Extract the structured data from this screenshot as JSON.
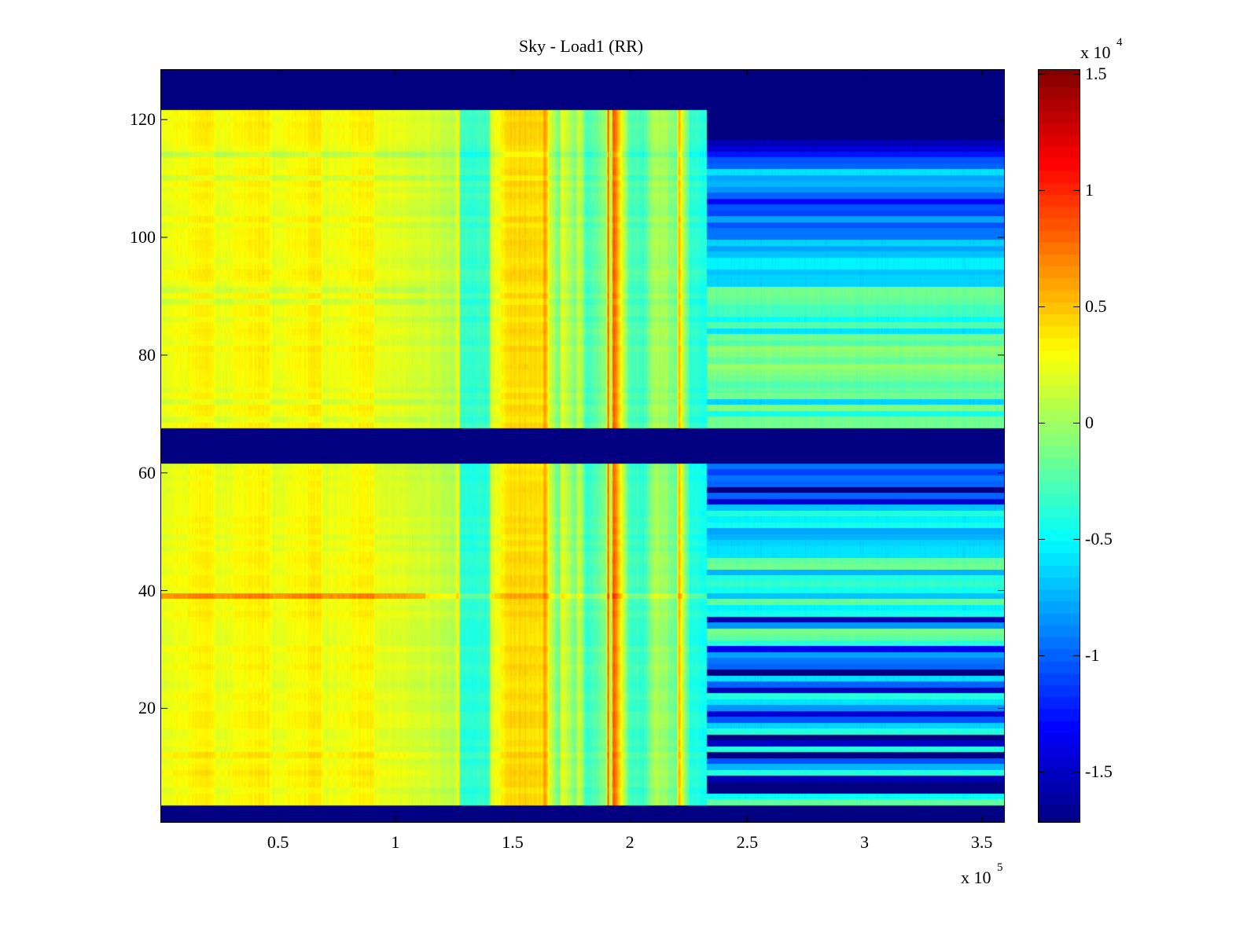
{
  "chart_data": {
    "type": "heatmap",
    "title": "Sky - Load1 (RR)",
    "xlabel": "",
    "ylabel": "",
    "xlim": [
      0,
      360000
    ],
    "ylim": [
      0.5,
      128.5
    ],
    "x_exponent_label": "x 10",
    "x_exponent": "5",
    "x_ticks": [
      50000,
      100000,
      150000,
      200000,
      250000,
      300000,
      350000
    ],
    "x_tick_labels": [
      "0.5",
      "1",
      "1.5",
      "2",
      "2.5",
      "3",
      "3.5"
    ],
    "y_ticks": [
      20,
      40,
      60,
      80,
      100,
      120
    ],
    "y_tick_labels": [
      "20",
      "40",
      "60",
      "80",
      "100",
      "120"
    ],
    "colormap": "jet",
    "clim": [
      -17200,
      15200
    ],
    "colorbar": {
      "exponent_label": "x 10",
      "exponent": "4",
      "ticks": [
        15000,
        10000,
        5000,
        0,
        -5000,
        -10000,
        -15000
      ],
      "tick_labels": [
        "1.5",
        "1",
        "0.5",
        "0",
        "-0.5",
        "-1",
        "-1.5"
      ],
      "levels": 64,
      "placement": "right"
    },
    "grid": false,
    "masked_rows": [
      {
        "from": 1,
        "to": 3,
        "value": -17200
      },
      {
        "from": 62,
        "to": 67,
        "value": -17200
      },
      {
        "from": 122,
        "to": 128,
        "value": -17200
      }
    ],
    "regions": [
      {
        "x_from": 0,
        "x_to": 233000,
        "description_value": 2000
      },
      {
        "x_from": 233000,
        "x_to": 360000,
        "description_value": -6000
      }
    ],
    "column_profile_x": [
      0,
      22000,
      24000,
      46000,
      48000,
      68000,
      70000,
      90000,
      92000,
      113000,
      125000,
      127000,
      128000,
      140000,
      141000,
      148000,
      163000,
      164000,
      166000,
      170000,
      171000,
      177000,
      178000,
      182000,
      190000,
      191000,
      192000,
      193000,
      200000,
      206000,
      211000,
      220000,
      221000,
      223000,
      226000,
      230000,
      233000
    ],
    "column_profile_value": [
      2200,
      3600,
      2200,
      3600,
      2200,
      3600,
      2200,
      3600,
      2200,
      1600,
      800,
      3000,
      -3800,
      -3800,
      1500,
      4200,
      4000,
      6500,
      1500,
      -2000,
      2500,
      -1500,
      1800,
      -3500,
      -1000,
      9500,
      -2000,
      9000,
      -3000,
      -3500,
      500,
      -1500,
      5500,
      800,
      -4000,
      -4200,
      -4800
    ],
    "row_offsets_left": [
      {
        "row": 5,
        "value": 2200
      },
      {
        "row": 9,
        "value": 2600
      },
      {
        "row": 12,
        "value": 2800
      },
      {
        "row": 20,
        "value": 2400
      },
      {
        "row": 24,
        "value": 1900
      },
      {
        "row": 26,
        "value": 1700
      },
      {
        "row": 39,
        "value": 6500
      },
      {
        "row": 57,
        "value": 1500
      },
      {
        "row": 60,
        "value": 2400
      },
      {
        "row": 61,
        "value": 2000
      },
      {
        "row": 69,
        "value": 1500
      },
      {
        "row": 72,
        "value": 1200
      },
      {
        "row": 77,
        "value": 2200
      },
      {
        "row": 79,
        "value": 2600
      },
      {
        "row": 89,
        "value": 1200
      },
      {
        "row": 91,
        "value": 900
      },
      {
        "row": 110,
        "value": 1400
      },
      {
        "row": 114,
        "value": 900
      }
    ],
    "right_region_rows": [
      {
        "row": 4,
        "value": -2000
      },
      {
        "row": 5,
        "value": -5000
      },
      {
        "row": 6,
        "value": -17200
      },
      {
        "row": 7,
        "value": -17200
      },
      {
        "row": 8,
        "value": -15500
      },
      {
        "row": 9,
        "value": -4000
      },
      {
        "row": 10,
        "value": -7500
      },
      {
        "row": 11,
        "value": -10500
      },
      {
        "row": 12,
        "value": -17200
      },
      {
        "row": 13,
        "value": -4000
      },
      {
        "row": 14,
        "value": -15000
      },
      {
        "row": 15,
        "value": -17200
      },
      {
        "row": 16,
        "value": -4000
      },
      {
        "row": 17,
        "value": -6500
      },
      {
        "row": 18,
        "value": -10500
      },
      {
        "row": 19,
        "value": -14500
      },
      {
        "row": 20,
        "value": -8500
      },
      {
        "row": 21,
        "value": -6000
      },
      {
        "row": 22,
        "value": -4000
      },
      {
        "row": 23,
        "value": -15500
      },
      {
        "row": 24,
        "value": -10000
      },
      {
        "row": 25,
        "value": -6000
      },
      {
        "row": 26,
        "value": -17200
      },
      {
        "row": 27,
        "value": -10000
      },
      {
        "row": 28,
        "value": -9500
      },
      {
        "row": 29,
        "value": -8000
      },
      {
        "row": 30,
        "value": -13500
      },
      {
        "row": 31,
        "value": -4000
      },
      {
        "row": 32,
        "value": -2000
      },
      {
        "row": 33,
        "value": -1200
      },
      {
        "row": 34,
        "value": -8500
      },
      {
        "row": 35,
        "value": -15500
      },
      {
        "row": 36,
        "value": -4500
      },
      {
        "row": 37,
        "value": -5500
      },
      {
        "row": 38,
        "value": -2000
      },
      {
        "row": 39,
        "value": -7000
      },
      {
        "row": 40,
        "value": -4500
      },
      {
        "row": 41,
        "value": -3500
      },
      {
        "row": 42,
        "value": -4000
      },
      {
        "row": 43,
        "value": -7500
      },
      {
        "row": 44,
        "value": -1500
      },
      {
        "row": 45,
        "value": -2000
      },
      {
        "row": 46,
        "value": -6000
      },
      {
        "row": 47,
        "value": -6000
      },
      {
        "row": 48,
        "value": -6500
      },
      {
        "row": 49,
        "value": -7500
      },
      {
        "row": 50,
        "value": -8000
      },
      {
        "row": 51,
        "value": -4500
      },
      {
        "row": 52,
        "value": -5500
      },
      {
        "row": 53,
        "value": -4000
      },
      {
        "row": 54,
        "value": -7000
      },
      {
        "row": 55,
        "value": -14500
      },
      {
        "row": 56,
        "value": -10000
      },
      {
        "row": 57,
        "value": -17200
      },
      {
        "row": 58,
        "value": -10000
      },
      {
        "row": 59,
        "value": -9500
      },
      {
        "row": 60,
        "value": -11000
      },
      {
        "row": 61,
        "value": -9500
      },
      {
        "row": 68,
        "value": -1500
      },
      {
        "row": 69,
        "value": -1500
      },
      {
        "row": 70,
        "value": -4500
      },
      {
        "row": 71,
        "value": -1000
      },
      {
        "row": 72,
        "value": -6500
      },
      {
        "row": 73,
        "value": -1500
      },
      {
        "row": 74,
        "value": -2000
      },
      {
        "row": 75,
        "value": -2500
      },
      {
        "row": 76,
        "value": -1500
      },
      {
        "row": 77,
        "value": -1000
      },
      {
        "row": 78,
        "value": -300
      },
      {
        "row": 79,
        "value": -2000
      },
      {
        "row": 80,
        "value": -1000
      },
      {
        "row": 81,
        "value": -500
      },
      {
        "row": 82,
        "value": -2500
      },
      {
        "row": 83,
        "value": -1500
      },
      {
        "row": 84,
        "value": -6000
      },
      {
        "row": 85,
        "value": -2500
      },
      {
        "row": 86,
        "value": -5000
      },
      {
        "row": 87,
        "value": -3000
      },
      {
        "row": 88,
        "value": -3000
      },
      {
        "row": 89,
        "value": -2000
      },
      {
        "row": 90,
        "value": -1500
      },
      {
        "row": 91,
        "value": -1500
      },
      {
        "row": 92,
        "value": -6500
      },
      {
        "row": 93,
        "value": -6500
      },
      {
        "row": 94,
        "value": -7000
      },
      {
        "row": 95,
        "value": -5500
      },
      {
        "row": 96,
        "value": -5500
      },
      {
        "row": 97,
        "value": -7000
      },
      {
        "row": 98,
        "value": -8000
      },
      {
        "row": 99,
        "value": -6500
      },
      {
        "row": 100,
        "value": -9500
      },
      {
        "row": 101,
        "value": -9500
      },
      {
        "row": 102,
        "value": -10500
      },
      {
        "row": 103,
        "value": -8000
      },
      {
        "row": 104,
        "value": -11000
      },
      {
        "row": 105,
        "value": -10500
      },
      {
        "row": 106,
        "value": -13000
      },
      {
        "row": 107,
        "value": -10000
      },
      {
        "row": 108,
        "value": -8500
      },
      {
        "row": 109,
        "value": -7500
      },
      {
        "row": 110,
        "value": -8000
      },
      {
        "row": 111,
        "value": -6000
      },
      {
        "row": 112,
        "value": -10000
      },
      {
        "row": 113,
        "value": -10500
      },
      {
        "row": 114,
        "value": -12500
      },
      {
        "row": 115,
        "value": -14500
      },
      {
        "row": 116,
        "value": -15500
      },
      {
        "row": 117,
        "value": -17200
      },
      {
        "row": 118,
        "value": -17200
      },
      {
        "row": 119,
        "value": -17200
      },
      {
        "row": 120,
        "value": -17200
      },
      {
        "row": 121,
        "value": -17200
      }
    ]
  }
}
